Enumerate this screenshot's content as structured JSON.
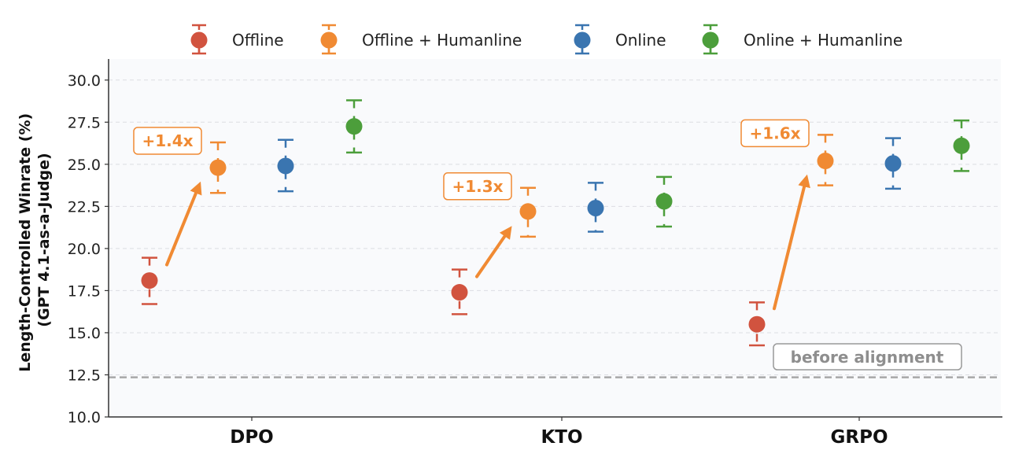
{
  "chart_data": {
    "type": "scatter",
    "subtype": "dot-with-error-bars",
    "title": "",
    "xlabel": "",
    "ylabel": "Length-Controlled Winrate (%)\n(GPT 4.1-as-a-Judge)",
    "ylabel_lines": [
      "Length-Controlled Winrate (%)",
      "(GPT 4.1-as-a-Judge)"
    ],
    "ylim": [
      10.0,
      31.25
    ],
    "yticks": [
      "10.0",
      "12.5",
      "15.0",
      "17.5",
      "20.0",
      "22.5",
      "25.0",
      "27.5",
      "30.0"
    ],
    "categories": [
      "DPO",
      "KTO",
      "GRPO"
    ],
    "grid": "horizontal dashed",
    "legend_position": "top (outside)",
    "series": [
      {
        "name": "Offline",
        "color": "#d1533f",
        "values": [
          18.1,
          17.4,
          15.5
        ],
        "err_low": [
          16.7,
          16.1,
          14.25
        ],
        "err_high": [
          19.45,
          18.75,
          16.8
        ]
      },
      {
        "name": "Offline + Humanline",
        "color": "#f08a33",
        "values": [
          24.8,
          22.2,
          25.2
        ],
        "err_low": [
          23.3,
          20.7,
          23.75
        ],
        "err_high": [
          26.3,
          23.6,
          26.75
        ]
      },
      {
        "name": "Online",
        "color": "#3a75b0",
        "values": [
          24.9,
          22.4,
          25.05
        ],
        "err_low": [
          23.4,
          21.0,
          23.55
        ],
        "err_high": [
          26.45,
          23.9,
          26.55
        ]
      },
      {
        "name": "Online + Humanline",
        "color": "#4c9e3b",
        "values": [
          27.25,
          22.8,
          26.1
        ],
        "err_low": [
          25.7,
          21.3,
          24.6
        ],
        "err_high": [
          28.8,
          24.25,
          27.6
        ]
      }
    ],
    "annotations": [
      {
        "category": "DPO",
        "text": "+1.4x",
        "color": "#f08a33"
      },
      {
        "category": "KTO",
        "text": "+1.3x",
        "color": "#f08a33"
      },
      {
        "category": "GRPO",
        "text": "+1.6x",
        "color": "#f08a33"
      }
    ],
    "reference_line": {
      "value": 12.35,
      "label": "before alignment",
      "color": "#999999",
      "style": "dashed"
    }
  }
}
